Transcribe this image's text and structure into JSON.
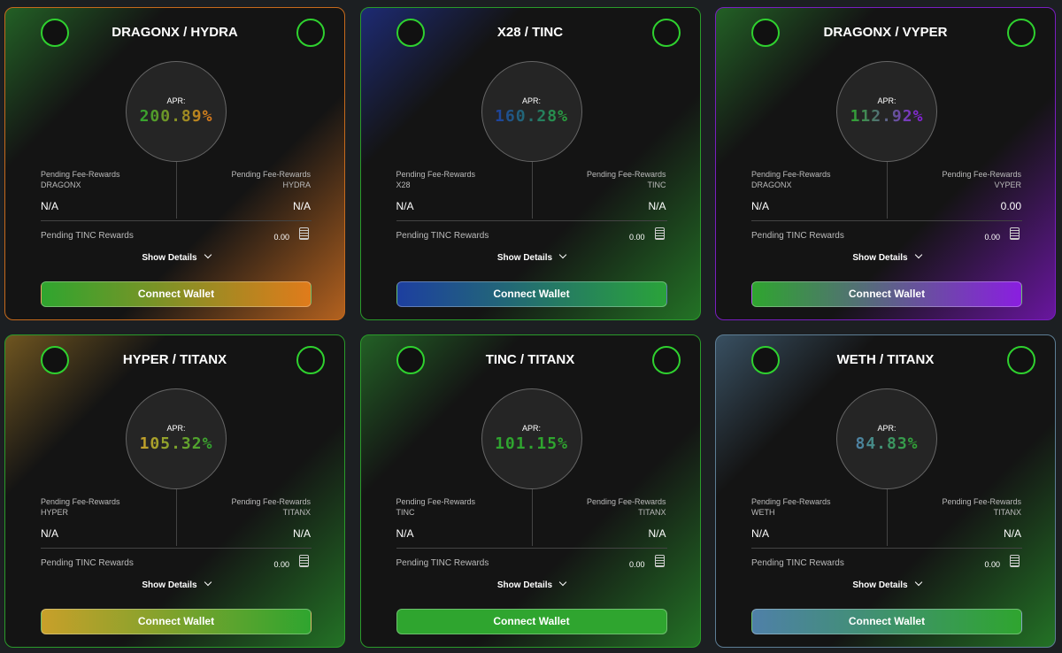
{
  "cards": [
    {
      "title": "DRAGONX / HYDRA",
      "apr_label": "APR:",
      "apr": "200.89%",
      "fee_label_left": "Pending Fee-Rewards",
      "token_left": "DRAGONX",
      "value_left": "N/A",
      "fee_label_right": "Pending Fee-Rewards",
      "token_right": "HYDRA",
      "value_right": "N/A",
      "tinc_label": "Pending TINC Rewards",
      "tinc_value": "0.00",
      "details": "Show Details",
      "button": "Connect Wallet"
    },
    {
      "title": "X28 / TINC",
      "apr_label": "APR:",
      "apr": "160.28%",
      "fee_label_left": "Pending Fee-Rewards",
      "token_left": "X28",
      "value_left": "N/A",
      "fee_label_right": "Pending Fee-Rewards",
      "token_right": "TINC",
      "value_right": "N/A",
      "tinc_label": "Pending TINC Rewards",
      "tinc_value": "0.00",
      "details": "Show Details",
      "button": "Connect Wallet"
    },
    {
      "title": "DRAGONX / VYPER",
      "apr_label": "APR:",
      "apr": "112.92%",
      "fee_label_left": "Pending Fee-Rewards",
      "token_left": "DRAGONX",
      "value_left": "N/A",
      "fee_label_right": "Pending Fee-Rewards",
      "token_right": "VYPER",
      "value_right": "0.00",
      "tinc_label": "Pending TINC Rewards",
      "tinc_value": "0.00",
      "details": "Show Details",
      "button": "Connect Wallet"
    },
    {
      "title": "HYPER / TITANX",
      "apr_label": "APR:",
      "apr": "105.32%",
      "fee_label_left": "Pending Fee-Rewards",
      "token_left": "HYPER",
      "value_left": "N/A",
      "fee_label_right": "Pending Fee-Rewards",
      "token_right": "TITANX",
      "value_right": "N/A",
      "tinc_label": "Pending TINC Rewards",
      "tinc_value": "0.00",
      "details": "Show Details",
      "button": "Connect Wallet"
    },
    {
      "title": "TINC / TITANX",
      "apr_label": "APR:",
      "apr": "101.15%",
      "fee_label_left": "Pending Fee-Rewards",
      "token_left": "TINC",
      "value_left": "N/A",
      "fee_label_right": "Pending Fee-Rewards",
      "token_right": "TITANX",
      "value_right": "N/A",
      "tinc_label": "Pending TINC Rewards",
      "tinc_value": "0.00",
      "details": "Show Details",
      "button": "Connect Wallet"
    },
    {
      "title": "WETH / TITANX",
      "apr_label": "APR:",
      "apr": "84.83%",
      "fee_label_left": "Pending Fee-Rewards",
      "token_left": "WETH",
      "value_left": "N/A",
      "fee_label_right": "Pending Fee-Rewards",
      "token_right": "TITANX",
      "value_right": "N/A",
      "tinc_label": "Pending TINC Rewards",
      "tinc_value": "0.00",
      "details": "Show Details",
      "button": "Connect Wallet"
    }
  ]
}
